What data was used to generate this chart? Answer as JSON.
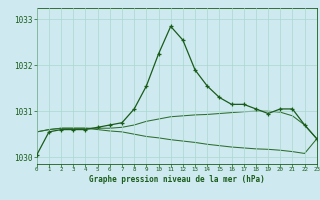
{
  "x": [
    0,
    1,
    2,
    3,
    4,
    5,
    6,
    7,
    8,
    9,
    10,
    11,
    12,
    13,
    14,
    15,
    16,
    17,
    18,
    19,
    20,
    21,
    22,
    23
  ],
  "line1": [
    1030.05,
    1030.55,
    1030.6,
    1030.6,
    1030.6,
    1030.65,
    1030.7,
    1030.75,
    1031.05,
    1031.55,
    1032.25,
    1032.85,
    1032.55,
    1031.9,
    1031.55,
    1031.3,
    1031.15,
    1031.15,
    1031.05,
    1030.95,
    1031.05,
    1031.05,
    1030.7,
    1030.4
  ],
  "line2": [
    1030.55,
    1030.6,
    1030.63,
    1030.63,
    1030.63,
    1030.63,
    1030.63,
    1030.65,
    1030.7,
    1030.78,
    1030.83,
    1030.88,
    1030.9,
    1030.92,
    1030.93,
    1030.95,
    1030.97,
    1030.99,
    1031.0,
    1031.0,
    1030.98,
    1030.9,
    1030.7,
    1030.4
  ],
  "line3": [
    1030.55,
    1030.6,
    1030.63,
    1030.63,
    1030.63,
    1030.6,
    1030.57,
    1030.55,
    1030.5,
    1030.45,
    1030.42,
    1030.38,
    1030.35,
    1030.32,
    1030.28,
    1030.25,
    1030.22,
    1030.2,
    1030.18,
    1030.17,
    1030.15,
    1030.12,
    1030.08,
    1030.4
  ],
  "ylim": [
    1029.85,
    1033.25
  ],
  "yticks": [
    1030,
    1031,
    1032,
    1033
  ],
  "xlabel": "Graphe pression niveau de la mer (hPa)",
  "bg_color": "#ceeaf0",
  "line_color1": "#1a5c1a",
  "line_color2": "#2d6e2d",
  "line_color3": "#2d6e2d",
  "grid_color": "#a8d8cc",
  "tick_color": "#1a5c1a"
}
